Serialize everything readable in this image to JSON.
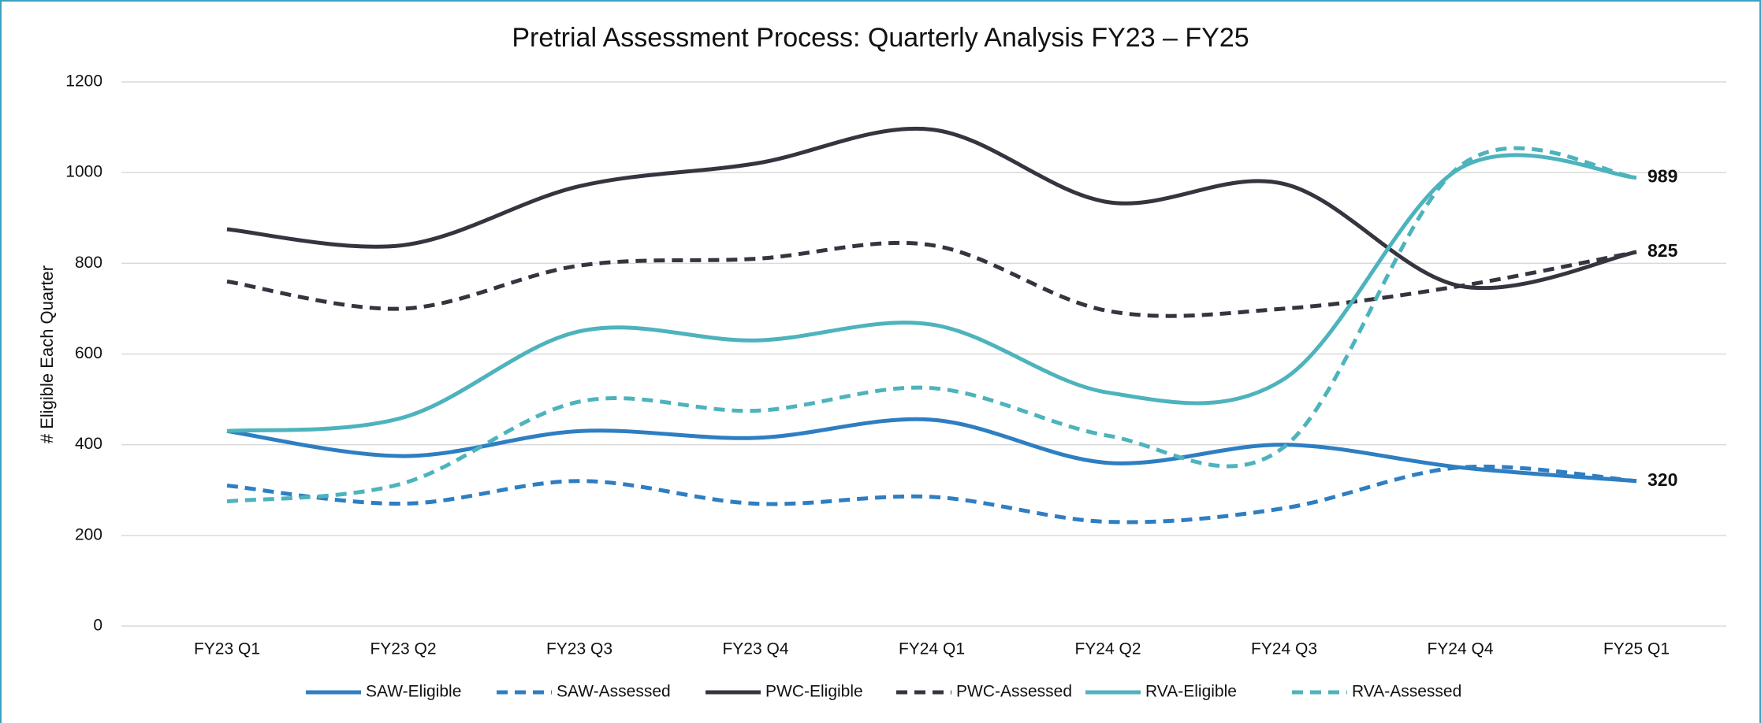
{
  "chart_data": {
    "type": "line",
    "title": "Pretrial Assessment Process: Quarterly Analysis FY23 – FY25",
    "y_label": "# Eligible Each Quarter",
    "categories": [
      "FY23 Q1",
      "FY23 Q2",
      "FY23 Q3",
      "FY23 Q4",
      "FY24 Q1",
      "FY24 Q2",
      "FY24 Q3",
      "FY24 Q4",
      "FY25 Q1"
    ],
    "ylim": [
      0,
      1200
    ],
    "yticks": [
      0,
      200,
      400,
      600,
      800,
      1000,
      1200
    ],
    "grid": true,
    "smooth": true,
    "legend": "bottom",
    "series": [
      {
        "name": "SAW-Eligible",
        "color": "#2e7ec2",
        "dashed": false,
        "label_last": true,
        "values": [
          430,
          375,
          430,
          415,
          455,
          360,
          400,
          350,
          320
        ]
      },
      {
        "name": "SAW-Assessed",
        "color": "#2e7ec2",
        "dashed": true,
        "label_last": false,
        "values": [
          310,
          270,
          320,
          270,
          285,
          230,
          260,
          350,
          320
        ]
      },
      {
        "name": "PWC-Eligible",
        "color": "#35343f",
        "dashed": false,
        "label_last": true,
        "values": [
          875,
          840,
          970,
          1020,
          1095,
          935,
          975,
          750,
          825
        ]
      },
      {
        "name": "PWC-Assessed",
        "color": "#35343f",
        "dashed": true,
        "label_last": false,
        "values": [
          760,
          700,
          795,
          810,
          840,
          695,
          700,
          750,
          825
        ]
      },
      {
        "name": "RVA-Eligible",
        "color": "#4db3bd",
        "dashed": false,
        "label_last": true,
        "values": [
          430,
          460,
          650,
          630,
          665,
          515,
          545,
          1010,
          989
        ]
      },
      {
        "name": "RVA-Assessed",
        "color": "#4db3bd",
        "dashed": true,
        "label_last": false,
        "values": [
          275,
          315,
          495,
          475,
          525,
          420,
          395,
          1015,
          989
        ]
      }
    ]
  }
}
